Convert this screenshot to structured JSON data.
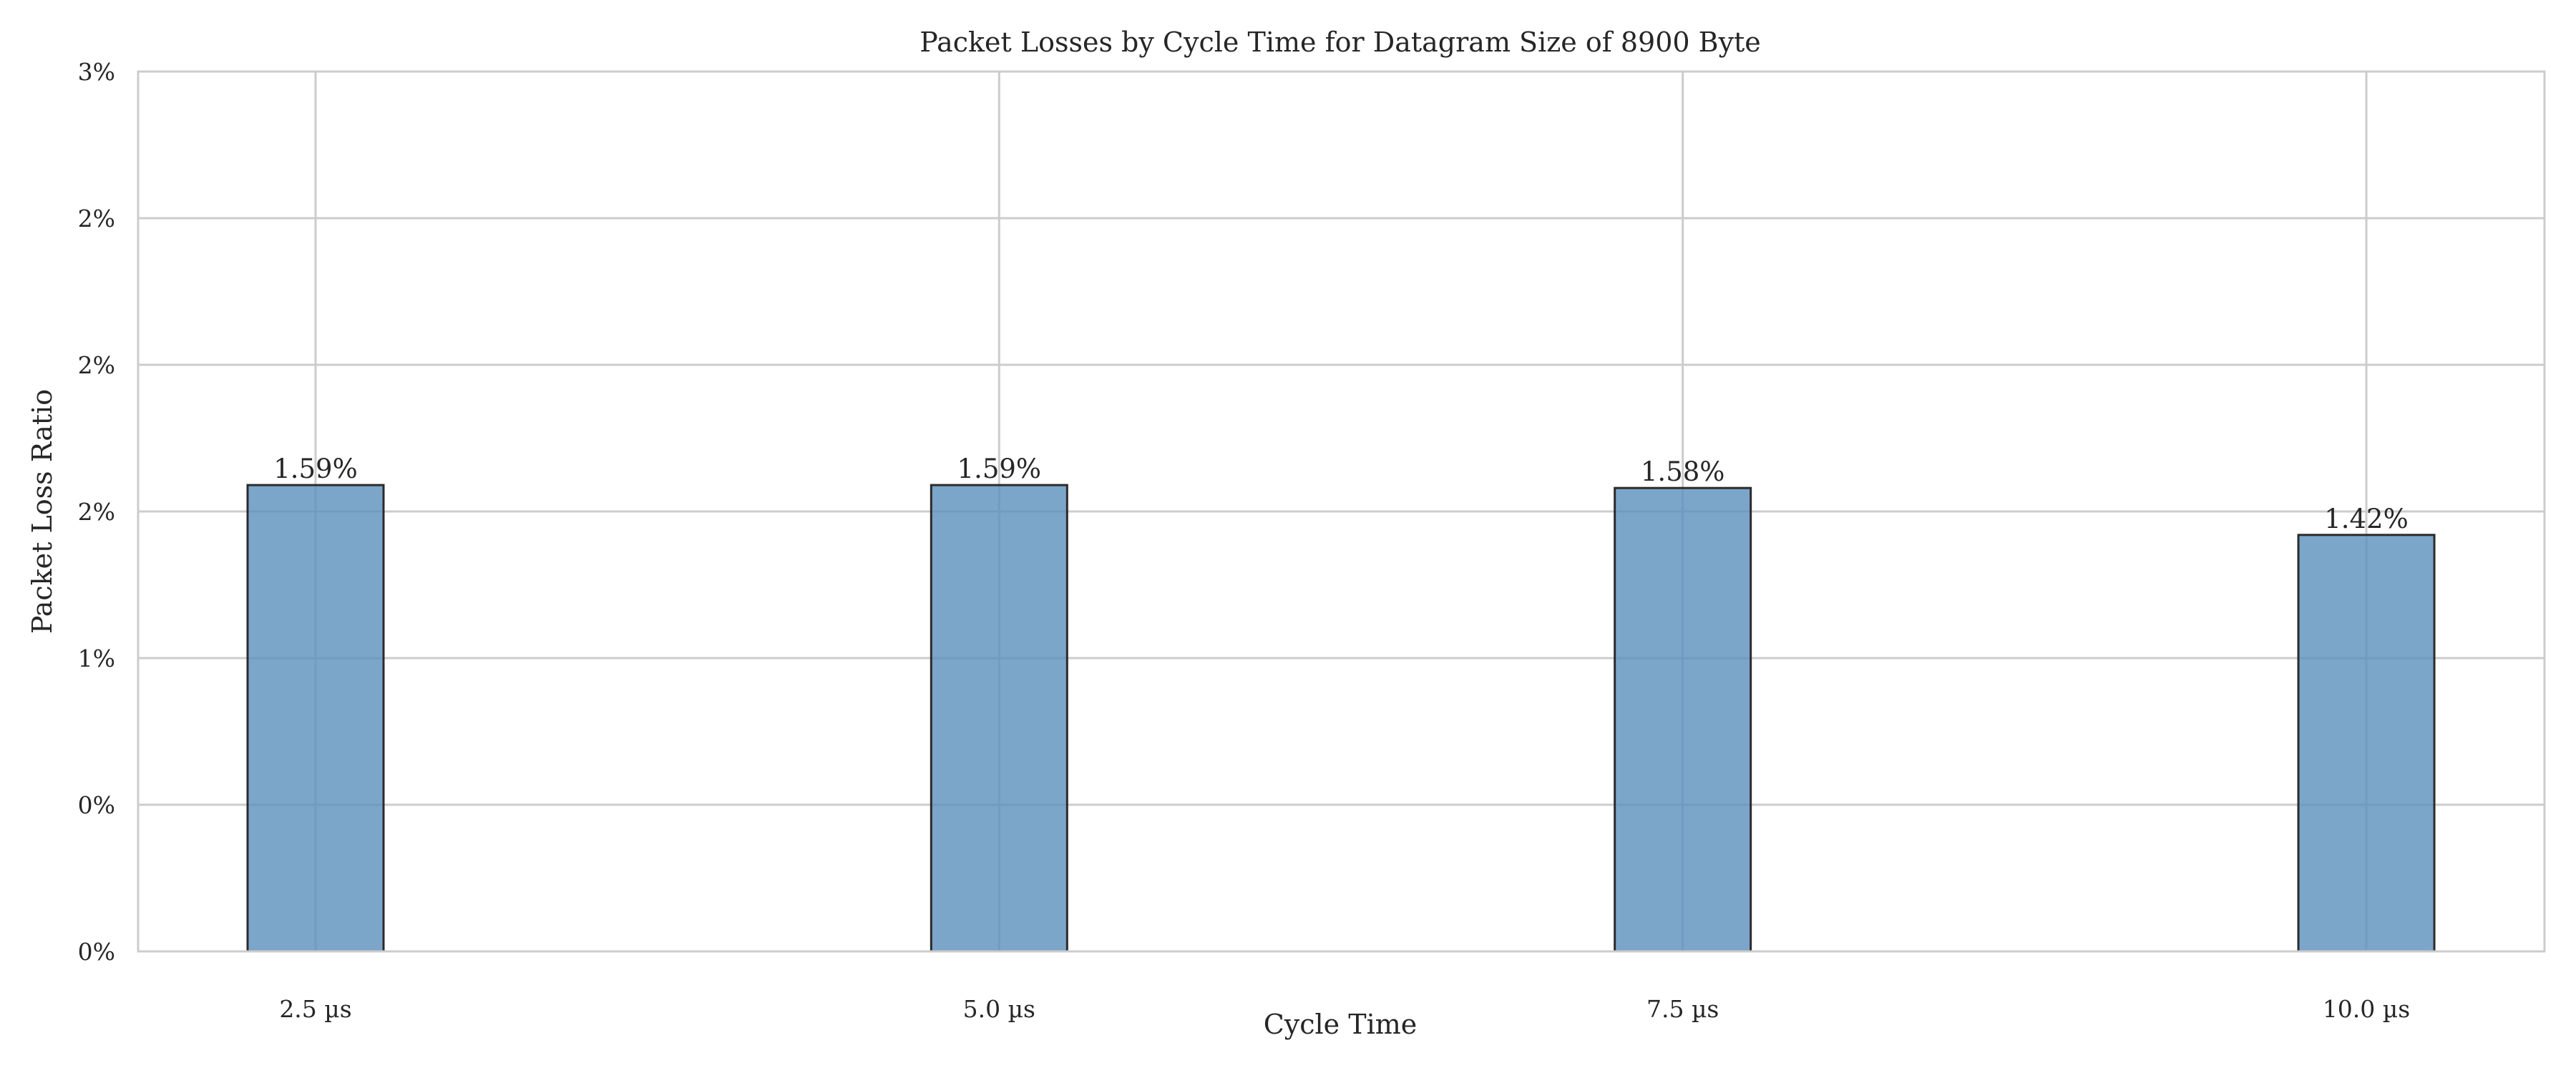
{
  "chart_data": {
    "type": "bar",
    "title": "Packet Losses by Cycle Time for Datagram Size of 8900 Byte",
    "xlabel": "Cycle Time",
    "ylabel": "Packet Loss Ratio",
    "categories": [
      "2.5 µs",
      "5.0 µs",
      "7.5 µs",
      "10.0 µs"
    ],
    "values": [
      1.59,
      1.59,
      1.58,
      1.42
    ],
    "data_labels": [
      "1.59%",
      "1.59%",
      "1.58%",
      "1.42%"
    ],
    "ylim": [
      0,
      3
    ],
    "yticks": [
      0,
      0.5,
      1,
      1.5,
      2,
      2.5,
      3
    ],
    "ytick_labels": [
      "0%",
      "0%",
      "1%",
      "2%",
      "2%",
      "2%",
      "3%"
    ],
    "grid": true,
    "colors": {
      "bar": "#5b8fbd",
      "edge": "#2b2b2b",
      "grid": "#cccccc"
    }
  }
}
